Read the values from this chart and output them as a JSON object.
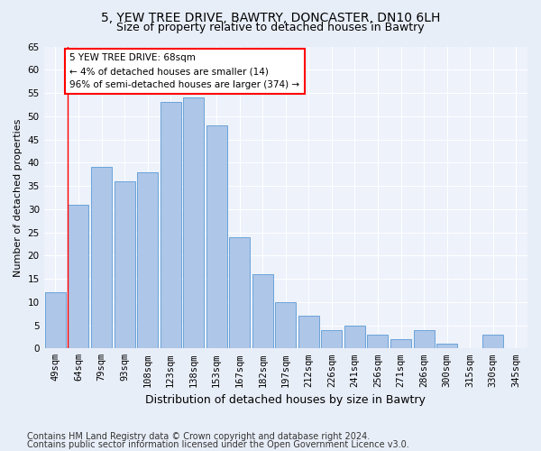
{
  "title1": "5, YEW TREE DRIVE, BAWTRY, DONCASTER, DN10 6LH",
  "title2": "Size of property relative to detached houses in Bawtry",
  "xlabel": "Distribution of detached houses by size in Bawtry",
  "ylabel": "Number of detached properties",
  "categories": [
    "49sqm",
    "64sqm",
    "79sqm",
    "93sqm",
    "108sqm",
    "123sqm",
    "138sqm",
    "153sqm",
    "167sqm",
    "182sqm",
    "197sqm",
    "212sqm",
    "226sqm",
    "241sqm",
    "256sqm",
    "271sqm",
    "286sqm",
    "300sqm",
    "315sqm",
    "330sqm",
    "345sqm"
  ],
  "values": [
    12,
    31,
    39,
    36,
    38,
    53,
    54,
    48,
    24,
    16,
    10,
    7,
    4,
    5,
    3,
    2,
    4,
    1,
    0,
    3,
    0
  ],
  "bar_color": "#aec6e8",
  "bar_edge_color": "#5b9bd5",
  "annotation_box_text": "5 YEW TREE DRIVE: 68sqm\n← 4% of detached houses are smaller (14)\n96% of semi-detached houses are larger (374) →",
  "annotation_box_color": "white",
  "annotation_box_edge_color": "red",
  "vline_color": "red",
  "vline_x_index": 1,
  "ylim": [
    0,
    65
  ],
  "yticks": [
    0,
    5,
    10,
    15,
    20,
    25,
    30,
    35,
    40,
    45,
    50,
    55,
    60,
    65
  ],
  "footnote1": "Contains HM Land Registry data © Crown copyright and database right 2024.",
  "footnote2": "Contains public sector information licensed under the Open Government Licence v3.0.",
  "bg_color": "#e8eef8",
  "plot_bg_color": "#edf2fb",
  "grid_color": "#ffffff",
  "title1_fontsize": 10,
  "title2_fontsize": 9,
  "xlabel_fontsize": 9,
  "ylabel_fontsize": 8,
  "tick_fontsize": 7.5,
  "footnote_fontsize": 7
}
